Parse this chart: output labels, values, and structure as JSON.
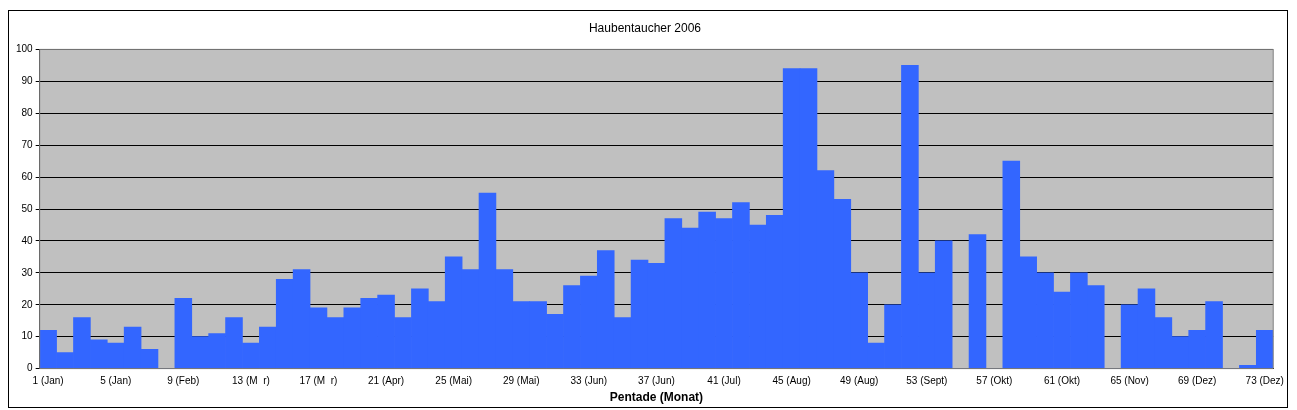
{
  "chart_data": {
    "type": "bar",
    "title": "Haubentaucher 2006",
    "xlabel": "Pentade (Monat)",
    "categories": [
      "1 (Jan)",
      null,
      null,
      null,
      "5 (Jan)",
      null,
      null,
      null,
      "9 (Feb)",
      null,
      null,
      null,
      "13 (M  r)",
      null,
      null,
      null,
      "17 (M  r)",
      null,
      null,
      null,
      "21 (Apr)",
      null,
      null,
      null,
      "25 (Mai)",
      null,
      null,
      null,
      "29 (Mai)",
      null,
      null,
      null,
      "33 (Jun)",
      null,
      null,
      null,
      "37 (Jun)",
      null,
      null,
      null,
      "41 (Jul)",
      null,
      null,
      null,
      "45 (Aug)",
      null,
      null,
      null,
      "49 (Aug)",
      null,
      null,
      null,
      "53 (Sept)",
      null,
      null,
      null,
      "57 (Okt)",
      null,
      null,
      null,
      "61 (Okt)",
      null,
      null,
      null,
      "65 (Nov)",
      null,
      null,
      null,
      "69 (Dez)",
      null,
      null,
      null,
      "73 (Dez)"
    ],
    "values": [
      12,
      5,
      16,
      9,
      8,
      13,
      6,
      0,
      22,
      10,
      11,
      16,
      8,
      13,
      28,
      31,
      19,
      16,
      19,
      22,
      23,
      16,
      25,
      21,
      35,
      31,
      55,
      31,
      21,
      21,
      17,
      26,
      29,
      37,
      16,
      34,
      33,
      47,
      44,
      49,
      47,
      52,
      45,
      48,
      94,
      94,
      62,
      53,
      30,
      8,
      20,
      95,
      30,
      40,
      0,
      42,
      0,
      65,
      35,
      30,
      24,
      30,
      26,
      0,
      20,
      25,
      16,
      10,
      12,
      21,
      0,
      1,
      12
    ],
    "color": "#3366ff",
    "ylim": [
      0,
      100
    ],
    "yticks": [
      0,
      10,
      20,
      30,
      40,
      50,
      60,
      70,
      80,
      90,
      100
    ],
    "grid": "y",
    "legend": false
  }
}
